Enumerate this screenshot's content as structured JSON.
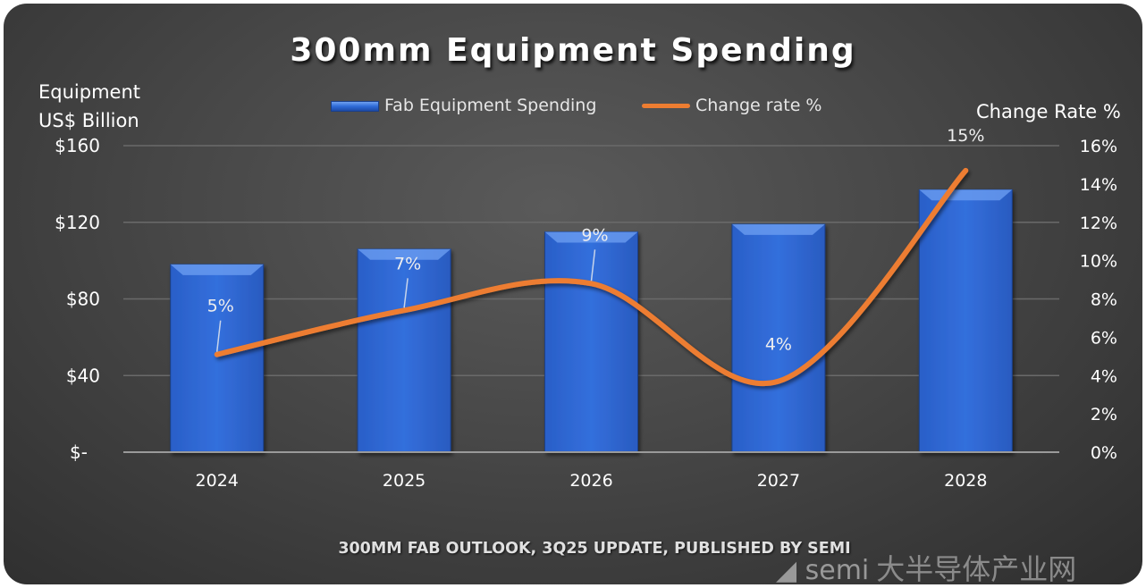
{
  "chart_data": {
    "type": "bar+line",
    "title": "300mm Equipment Spending",
    "categories": [
      "2024",
      "2025",
      "2026",
      "2027",
      "2028"
    ],
    "series": [
      {
        "name": "Fab Equipment Spending",
        "type": "bar",
        "axis": "left",
        "values": [
          98,
          106,
          115,
          119,
          137
        ],
        "color": "#2f6bd8"
      },
      {
        "name": "Change rate %",
        "type": "line",
        "axis": "right",
        "values": [
          5.1,
          7.4,
          8.8,
          3.7,
          14.7
        ],
        "data_labels": [
          "5%",
          "7%",
          "9%",
          "4%",
          "15%"
        ],
        "color": "#ed7d31"
      }
    ],
    "ylabel_left": [
      "Equipment",
      "US$ Billion"
    ],
    "ylabel_right": "Change Rate %",
    "ylim_left": [
      0,
      160
    ],
    "yticks_left": [
      "$-",
      "$40",
      "$80",
      "$120",
      "$160"
    ],
    "ylim_right": [
      0,
      16
    ],
    "yticks_right": [
      "0%",
      "2%",
      "4%",
      "6%",
      "8%",
      "10%",
      "12%",
      "14%",
      "16%"
    ],
    "grid": true,
    "legend": "top-center",
    "footer": "300MM FAB OUTLOOK, 3Q25 UPDATE, PUBLISHED BY SEMI"
  },
  "watermark": {
    "logo": "semi",
    "text": "大半导体产业网"
  }
}
